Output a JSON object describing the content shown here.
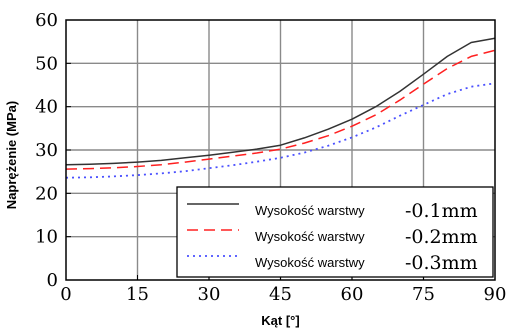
{
  "chart_data": {
    "type": "line",
    "title": "",
    "xlabel": "Kąt [°]",
    "ylabel": "Naprężenie  (MPa)",
    "xlim": [
      0,
      90
    ],
    "ylim": [
      0,
      60
    ],
    "xticks": [
      0,
      15,
      30,
      45,
      60,
      75,
      90
    ],
    "yticks": [
      0,
      10,
      20,
      30,
      40,
      50,
      60
    ],
    "grid": true,
    "legend_position": "bottom-right",
    "series": [
      {
        "name": "Wysokość warstwy",
        "legend_value": "-0.1mm",
        "color": "#333333",
        "style": "solid",
        "x": [
          0,
          5,
          10,
          15,
          20,
          25,
          30,
          35,
          40,
          45,
          50,
          55,
          60,
          65,
          70,
          75,
          80,
          85,
          90
        ],
        "y": [
          26.6,
          26.7,
          26.9,
          27.2,
          27.6,
          28.2,
          28.8,
          29.5,
          30.2,
          31.1,
          32.8,
          34.8,
          37.1,
          40.0,
          43.5,
          47.5,
          51.6,
          54.8,
          55.8
        ]
      },
      {
        "name": "Wysokość warstwy",
        "legend_value": "-0.2mm",
        "color": "#ff2020",
        "style": "dashed",
        "x": [
          0,
          5,
          10,
          15,
          20,
          25,
          30,
          35,
          40,
          45,
          50,
          55,
          60,
          65,
          70,
          75,
          80,
          85,
          90
        ],
        "y": [
          25.6,
          25.7,
          25.9,
          26.2,
          26.6,
          27.2,
          27.9,
          28.6,
          29.3,
          30.2,
          31.6,
          33.3,
          35.5,
          38.1,
          41.5,
          45.2,
          48.8,
          51.6,
          53.0
        ]
      },
      {
        "name": "Wysokość warstwy",
        "legend_value": "-0.3mm",
        "color": "#4a50ff",
        "style": "dotted",
        "x": [
          0,
          5,
          10,
          15,
          20,
          25,
          30,
          35,
          40,
          45,
          50,
          55,
          60,
          65,
          70,
          75,
          80,
          85,
          90
        ],
        "y": [
          23.6,
          23.7,
          23.9,
          24.2,
          24.6,
          25.1,
          25.8,
          26.5,
          27.3,
          28.2,
          29.4,
          31.0,
          32.9,
          35.2,
          37.9,
          40.4,
          42.9,
          44.6,
          45.4
        ]
      }
    ]
  }
}
